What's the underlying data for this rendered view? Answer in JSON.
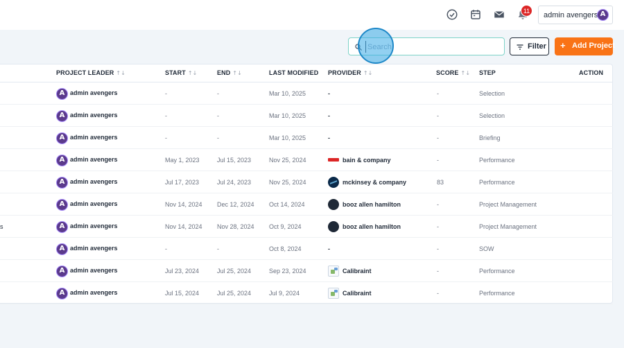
{
  "topbar": {
    "icons": [
      "check-circle-icon",
      "calendar-icon",
      "mail-icon",
      "bell-icon"
    ],
    "notification_count": "11",
    "user": {
      "name": "admin avengers",
      "avatar_letter": "A"
    }
  },
  "toolbar": {
    "search_placeholder": "Search",
    "filter_label": "Filter",
    "add_label": "Add Project",
    "add_icon": "+"
  },
  "table": {
    "columns": {
      "leader": "PROJECT LEADER",
      "start": "START",
      "end": "END",
      "modified": "LAST MODIFIED",
      "provider": "PROVIDER",
      "score": "SCORE",
      "step": "STEP",
      "action": "ACTION"
    },
    "sort_glyph": "↑↓",
    "rows": [
      {
        "edge": "",
        "leader": "admin avengers",
        "start": "-",
        "end": "-",
        "modified": "Mar 10, 2025",
        "provider": "-",
        "logo": "",
        "score": "-",
        "step": "Selection"
      },
      {
        "edge": "",
        "leader": "admin avengers",
        "start": "-",
        "end": "-",
        "modified": "Mar 10, 2025",
        "provider": "-",
        "logo": "",
        "score": "-",
        "step": "Selection"
      },
      {
        "edge": "",
        "leader": "admin avengers",
        "start": "-",
        "end": "-",
        "modified": "Mar 10, 2025",
        "provider": "-",
        "logo": "",
        "score": "-",
        "step": "Briefing"
      },
      {
        "edge": "",
        "leader": "admin avengers",
        "start": "May 1, 2023",
        "end": "Jul 15, 2023",
        "modified": "Nov 25, 2024",
        "provider": "bain & company",
        "logo": "bain",
        "score": "-",
        "step": "Performance"
      },
      {
        "edge": "",
        "leader": "admin avengers",
        "start": "Jul 17, 2023",
        "end": "Jul 24, 2023",
        "modified": "Nov 25, 2024",
        "provider": "mckinsey & company",
        "logo": "mck",
        "score": "83",
        "step": "Performance"
      },
      {
        "edge": "",
        "leader": "admin avengers",
        "start": "Nov 14, 2024",
        "end": "Dec 12, 2024",
        "modified": "Oct 14, 2024",
        "provider": "booz allen hamilton",
        "logo": "booz",
        "score": "-",
        "step": "Project Management"
      },
      {
        "edge": "s",
        "leader": "admin avengers",
        "start": "Nov 14, 2024",
        "end": "Nov 28, 2024",
        "modified": "Oct 9, 2024",
        "provider": "booz allen hamilton",
        "logo": "booz",
        "score": "-",
        "step": "Project Management"
      },
      {
        "edge": "",
        "leader": "admin avengers",
        "start": "-",
        "end": "-",
        "modified": "Oct 8, 2024",
        "provider": "-",
        "logo": "",
        "score": "-",
        "step": "SOW"
      },
      {
        "edge": "",
        "leader": "admin avengers",
        "start": "Jul 23, 2024",
        "end": "Jul 25, 2024",
        "modified": "Sep 23, 2024",
        "provider": "Calibraint",
        "logo": "cal",
        "score": "-",
        "step": "Performance"
      },
      {
        "edge": "",
        "leader": "admin avengers",
        "start": "Jul 15, 2024",
        "end": "Jul 25, 2024",
        "modified": "Jul 9, 2024",
        "provider": "Calibraint",
        "logo": "cal",
        "score": "-",
        "step": "Performance"
      }
    ]
  }
}
